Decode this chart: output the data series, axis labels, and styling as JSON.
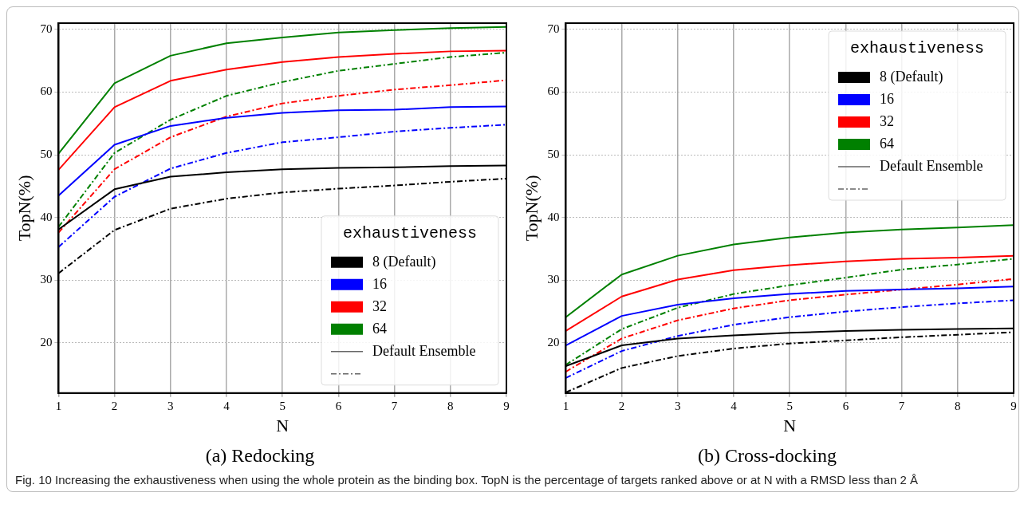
{
  "chart_data": [
    {
      "type": "line",
      "title": "(a) Redocking",
      "xlabel": "N",
      "ylabel": "TopN(%)",
      "legend_title": "exhaustiveness",
      "legend": "bottom right",
      "grid": true,
      "marker": "none",
      "x": [
        1,
        2,
        3,
        4,
        5,
        6,
        7,
        8,
        9
      ],
      "xlim": [
        1,
        9
      ],
      "xticks": [
        1,
        2,
        3,
        4,
        5,
        6,
        7,
        8,
        9
      ],
      "ylim": [
        12,
        71
      ],
      "yticks": [
        20,
        30,
        40,
        50,
        60,
        70
      ],
      "annotations": [
        "Default Ensemble",
        "Fig. 10 Increasing the exhaustiveness when using the whole protein as the binding box. TopN is the percentage of targets ranked above or at N with a RMSD less than 2 Å"
      ],
      "series": [
        {
          "name": "8 (Default)",
          "color": "#000000",
          "line_style": "solid",
          "values": [
            38.1,
            44.5,
            46.5,
            47.2,
            47.7,
            47.9,
            48.0,
            48.2,
            48.3
          ]
        },
        {
          "name": "16",
          "color": "#0000ff",
          "line_style": "solid",
          "values": [
            43.5,
            51.6,
            54.6,
            55.9,
            56.7,
            57.1,
            57.2,
            57.6,
            57.7
          ]
        },
        {
          "name": "32",
          "color": "#ff0000",
          "line_style": "solid",
          "values": [
            47.6,
            57.6,
            61.8,
            63.6,
            64.8,
            65.6,
            66.1,
            66.5,
            66.6
          ]
        },
        {
          "name": "64",
          "color": "#008000",
          "line_style": "solid",
          "values": [
            50.2,
            61.4,
            65.8,
            67.8,
            68.7,
            69.5,
            69.9,
            70.2,
            70.4
          ]
        },
        {
          "color": "#000000",
          "line_style": "dashed",
          "values": [
            31.1,
            38.0,
            41.4,
            43.0,
            44.0,
            44.6,
            45.1,
            45.7,
            46.2
          ]
        },
        {
          "color": "#0000ff",
          "line_style": "dashed",
          "values": [
            35.3,
            43.3,
            47.8,
            50.3,
            52.0,
            52.8,
            53.7,
            54.3,
            54.8
          ]
        },
        {
          "color": "#ff0000",
          "line_style": "dashed",
          "values": [
            37.6,
            47.7,
            52.8,
            56.1,
            58.2,
            59.4,
            60.4,
            61.1,
            61.9
          ]
        },
        {
          "color": "#008000",
          "line_style": "dashed",
          "values": [
            38.5,
            50.3,
            55.6,
            59.4,
            61.6,
            63.4,
            64.5,
            65.6,
            66.3
          ]
        }
      ]
    },
    {
      "type": "line",
      "title": "(b) Cross-docking",
      "xlabel": "N",
      "ylabel": "TopN(%)",
      "legend_title": "exhaustiveness",
      "legend": "top right",
      "grid": true,
      "marker": "none",
      "x": [
        1,
        2,
        3,
        4,
        5,
        6,
        7,
        8,
        9
      ],
      "xlim": [
        1,
        9
      ],
      "xticks": [
        1,
        2,
        3,
        4,
        5,
        6,
        7,
        8,
        9
      ],
      "ylim": [
        12,
        71
      ],
      "yticks": [
        20,
        30,
        40,
        50,
        60,
        70
      ],
      "annotations": [
        "Default Ensemble"
      ],
      "series": [
        {
          "name": "8 (Default)",
          "color": "#000000",
          "line_style": "solid",
          "values": [
            16.3,
            19.6,
            20.7,
            21.2,
            21.6,
            21.9,
            22.1,
            22.2,
            22.3
          ]
        },
        {
          "name": "16",
          "color": "#0000ff",
          "line_style": "solid",
          "values": [
            19.6,
            24.3,
            26.1,
            27.1,
            27.8,
            28.3,
            28.5,
            28.7,
            29.0
          ]
        },
        {
          "name": "32",
          "color": "#ff0000",
          "line_style": "solid",
          "values": [
            21.9,
            27.4,
            30.1,
            31.6,
            32.4,
            33.0,
            33.4,
            33.6,
            33.9
          ]
        },
        {
          "name": "64",
          "color": "#008000",
          "line_style": "solid",
          "values": [
            24.1,
            30.9,
            33.9,
            35.7,
            36.8,
            37.6,
            38.1,
            38.4,
            38.8
          ]
        },
        {
          "color": "#000000",
          "line_style": "dashed",
          "values": [
            12.1,
            16.0,
            17.9,
            19.1,
            19.9,
            20.4,
            20.9,
            21.3,
            21.7
          ]
        },
        {
          "color": "#0000ff",
          "line_style": "dashed",
          "values": [
            14.4,
            18.7,
            21.1,
            22.9,
            24.1,
            25.0,
            25.7,
            26.3,
            26.8
          ]
        },
        {
          "color": "#ff0000",
          "line_style": "dashed",
          "values": [
            15.4,
            20.7,
            23.6,
            25.5,
            26.8,
            27.7,
            28.5,
            29.3,
            30.2
          ]
        },
        {
          "color": "#008000",
          "line_style": "dashed",
          "values": [
            16.5,
            22.2,
            25.6,
            27.8,
            29.2,
            30.4,
            31.7,
            32.5,
            33.4
          ]
        }
      ]
    }
  ]
}
